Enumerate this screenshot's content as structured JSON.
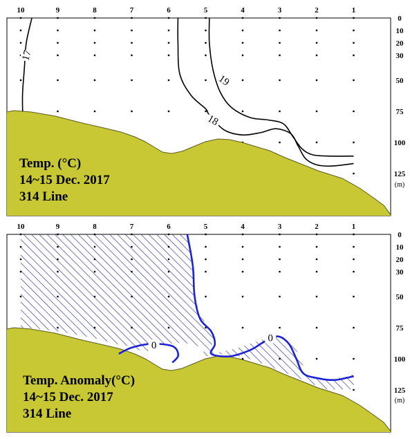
{
  "chart_data": [
    {
      "type": "contour",
      "title_lines": [
        "Temp. (°C)",
        "14~15 Dec. 2017",
        "314 Line"
      ],
      "station_labels": [
        "10",
        "9",
        "8",
        "7",
        "6",
        "5",
        "4",
        "3",
        "2",
        "1"
      ],
      "depth_ticks": [
        "0",
        "10",
        "20",
        "30",
        "50",
        "75",
        "100",
        "125"
      ],
      "depth_values": [
        0,
        10,
        20,
        30,
        50,
        75,
        100,
        125
      ],
      "unit_label": "(m)",
      "ylim": [
        0,
        150
      ],
      "contours": [
        {
          "level": 17,
          "label": "17",
          "points": [
            [
              9.7,
              0
            ],
            [
              9.85,
              20
            ],
            [
              9.9,
              40
            ],
            [
              9.95,
              60
            ],
            [
              9.95,
              75
            ]
          ]
        },
        {
          "level": 18,
          "label": "18",
          "points": [
            [
              5.75,
              0
            ],
            [
              5.75,
              20
            ],
            [
              5.7,
              45
            ],
            [
              5.4,
              62
            ],
            [
              5.0,
              73
            ],
            [
              4.9,
              78
            ],
            [
              4.5,
              90
            ],
            [
              4.0,
              94
            ],
            [
              3.5,
              92
            ],
            [
              3.1,
              89
            ],
            [
              2.7,
              93
            ],
            [
              2.5,
              103
            ],
            [
              2.3,
              113
            ],
            [
              2.0,
              118
            ],
            [
              1.6,
              119
            ],
            [
              1.0,
              117
            ]
          ]
        },
        {
          "level": 19,
          "label": "19",
          "points": [
            [
              4.9,
              0
            ],
            [
              4.9,
              20
            ],
            [
              4.8,
              42
            ],
            [
              4.6,
              60
            ],
            [
              4.3,
              72
            ],
            [
              3.8,
              80
            ],
            [
              3.3,
              82
            ],
            [
              2.9,
              85
            ],
            [
              2.65,
              95
            ],
            [
              2.4,
              105
            ],
            [
              2.1,
              110
            ],
            [
              1.6,
              111
            ],
            [
              1.0,
              111
            ]
          ]
        }
      ]
    },
    {
      "type": "contour",
      "title_lines": [
        "Temp. Anomaly(°C)",
        "14~15 Dec. 2017",
        "314 Line"
      ],
      "station_labels": [
        "10",
        "9",
        "8",
        "7",
        "6",
        "5",
        "4",
        "3",
        "2",
        "1"
      ],
      "depth_ticks": [
        "0",
        "10",
        "20",
        "30",
        "50",
        "75",
        "100",
        "125"
      ],
      "depth_values": [
        0,
        10,
        20,
        30,
        50,
        75,
        100,
        125
      ],
      "unit_label": "(m)",
      "ylim": [
        0,
        150
      ],
      "contours": [
        {
          "level": 0,
          "label": "0",
          "points": [
            [
              5.5,
              0
            ],
            [
              5.35,
              25
            ],
            [
              5.3,
              50
            ],
            [
              5.15,
              68
            ],
            [
              4.85,
              78
            ],
            [
              4.75,
              88
            ],
            [
              4.85,
              96
            ],
            [
              4.35,
              98
            ],
            [
              3.8,
              93
            ],
            [
              3.4,
              86
            ],
            [
              3.05,
              82
            ],
            [
              2.75,
              88
            ],
            [
              2.55,
              100
            ],
            [
              2.35,
              112
            ],
            [
              1.9,
              116
            ],
            [
              1.5,
              117
            ],
            [
              1.0,
              114
            ]
          ]
        },
        {
          "level": 0,
          "label": "0",
          "points": [
            [
              7.35,
              96
            ],
            [
              7.0,
              91
            ],
            [
              6.5,
              88
            ],
            [
              6.0,
              89
            ],
            [
              5.8,
              92
            ],
            [
              5.75,
              98
            ],
            [
              5.9,
              103
            ]
          ]
        }
      ],
      "negative_region_note": ""
    }
  ]
}
